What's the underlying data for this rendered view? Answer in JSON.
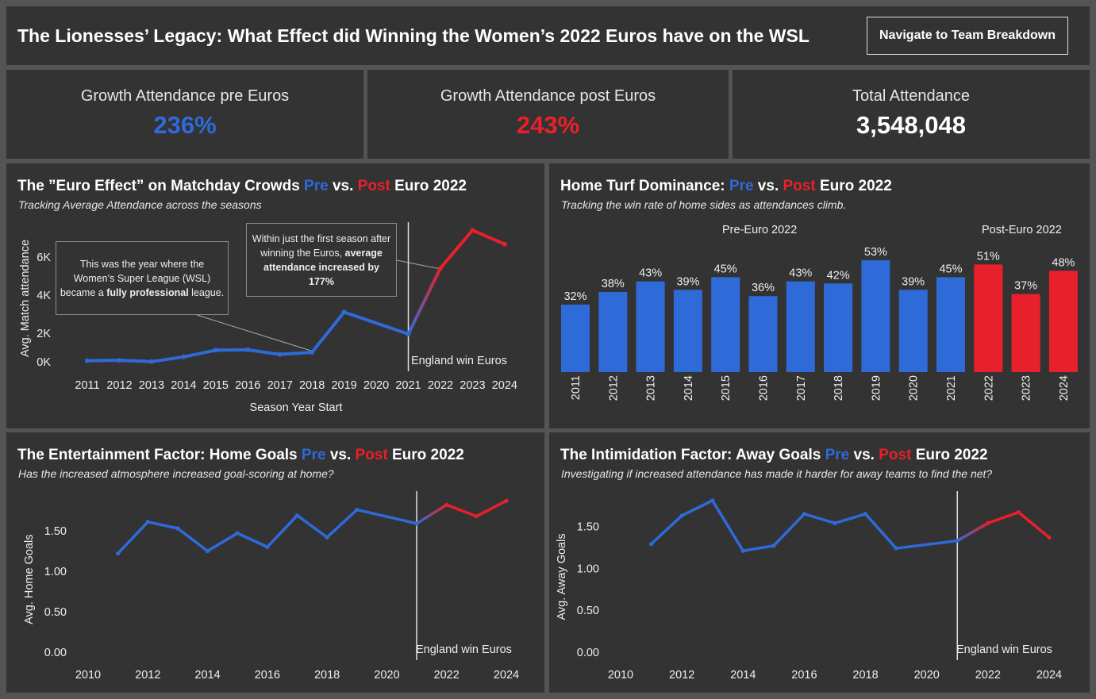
{
  "header": {
    "title": "The Lionesses’ Legacy: What Effect did Winning the Women’s 2022 Euros have on the WSL",
    "nav_button": "Navigate to Team Breakdown"
  },
  "kpis": [
    {
      "label": "Growth Attendance pre Euros",
      "value": "236%",
      "color": "#2f6ad9"
    },
    {
      "label": "Growth Attendance post Euros",
      "value": "243%",
      "color": "#e8202b"
    },
    {
      "label": "Total Attendance",
      "value": "3,548,048",
      "color": "#ffffff"
    }
  ],
  "colors": {
    "pre": "#2f6ad9",
    "post": "#e8202b",
    "background": "#333333"
  },
  "title_parts": {
    "pre": "Pre",
    "vs": " vs. ",
    "post": "Post",
    "euro": " Euro 2022"
  },
  "attendance": {
    "title_prefix": "The ”Euro Effect” on Matchday Crowds ",
    "subtitle": "Tracking  Average Attendance  across the seasons",
    "annotation1_pre": "This was the year  where the Women’s Super League (WSL) became a ",
    "annotation1_bold": "fully professional",
    "annotation1_post": " league.",
    "annotation2_pre": "Within just the first season after winning the Euros, ",
    "annotation2_bold": "average attendance increased by 177%",
    "reference_label": "England win Euros"
  },
  "win_rate": {
    "title_prefix": "Home Turf Dominance: ",
    "subtitle": "Tracking the win rate of home sides as attendances climb.",
    "pre_label": "Pre-Euro 2022",
    "post_label": "Post-Euro 2022"
  },
  "home_goals": {
    "title_prefix": "The Entertainment Factor: Home Goals ",
    "subtitle": "Has the increased atmosphere increased goal-scoring at home?",
    "reference_label": "England win Euros"
  },
  "away_goals": {
    "title_prefix": "The Intimidation Factor: Away Goals ",
    "subtitle": "Investigating if increased attendance has made it harder for away teams to find the net?",
    "reference_label": "England win Euros"
  },
  "chart_data": [
    {
      "type": "line",
      "xlabel": "Season Year Start",
      "ylabel": "Avg. Match attendance",
      "x": [
        2011,
        2012,
        2013,
        2014,
        2015,
        2016,
        2017,
        2018,
        2019,
        2021,
        2022,
        2023,
        2024
      ],
      "values": [
        0.6,
        0.62,
        0.55,
        0.8,
        1.15,
        1.17,
        0.93,
        1.04,
        3.15,
        2.0,
        5.46,
        7.45,
        6.72
      ],
      "x_ticks": [
        "2011",
        "2012",
        "2013",
        "2014",
        "2015",
        "2016",
        "2017",
        "2018",
        "2019",
        "2020",
        "2021",
        "2022",
        "2023",
        "2024"
      ],
      "y_ticks": [
        "0K",
        "2K",
        "4K",
        "6K"
      ],
      "ylim": [
        0,
        7.5
      ],
      "unit": "K",
      "reference_line": 2021
    },
    {
      "type": "bar",
      "categories": [
        "2011",
        "2012",
        "2013",
        "2014",
        "2015",
        "2016",
        "2017",
        "2018",
        "2019",
        "2020",
        "2021",
        "2022",
        "2023",
        "2024"
      ],
      "values": [
        32,
        38,
        43,
        39,
        45,
        36,
        43,
        42,
        53,
        39,
        45,
        51,
        37,
        48
      ],
      "labels": [
        "32%",
        "38%",
        "43%",
        "39%",
        "45%",
        "36%",
        "43%",
        "42%",
        "53%",
        "39%",
        "45%",
        "51%",
        "37%",
        "48%"
      ],
      "post_from": "2022"
    },
    {
      "type": "line",
      "ylabel": "Avg. Home Goals",
      "x": [
        2011,
        2012,
        2013,
        2014,
        2015,
        2016,
        2017,
        2018,
        2019,
        2021,
        2022,
        2023,
        2024
      ],
      "values": [
        1.22,
        1.61,
        1.53,
        1.25,
        1.47,
        1.3,
        1.69,
        1.42,
        1.76,
        1.59,
        1.82,
        1.68,
        1.87
      ],
      "x_ticks": [
        "2010",
        "2012",
        "2014",
        "2016",
        "2018",
        "2020",
        "2022",
        "2024"
      ],
      "y_ticks": [
        "0.00",
        "0.50",
        "1.00",
        "1.50"
      ],
      "reference_line": 2021
    },
    {
      "type": "line",
      "ylabel": "Avg. Away Goals",
      "x": [
        2011,
        2012,
        2013,
        2014,
        2015,
        2016,
        2017,
        2018,
        2019,
        2021,
        2022,
        2023,
        2024
      ],
      "values": [
        1.29,
        1.63,
        1.81,
        1.21,
        1.27,
        1.65,
        1.54,
        1.65,
        1.24,
        1.33,
        1.54,
        1.67,
        1.37
      ],
      "x_ticks": [
        "2010",
        "2012",
        "2014",
        "2016",
        "2018",
        "2020",
        "2022",
        "2024"
      ],
      "y_ticks": [
        "0.00",
        "0.50",
        "1.00",
        "1.50"
      ],
      "reference_line": 2021
    }
  ]
}
